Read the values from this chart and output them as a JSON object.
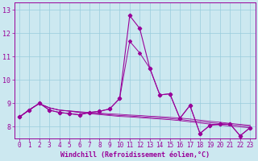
{
  "xlabel": "Windchill (Refroidissement éolien,°C)",
  "ylabel": "",
  "bg_color": "#cce8f0",
  "grid_color": "#99ccdd",
  "line_color": "#990099",
  "x": [
    0,
    1,
    2,
    3,
    4,
    5,
    6,
    7,
    8,
    9,
    10,
    11,
    12,
    13,
    14,
    15,
    16,
    17,
    18,
    19,
    20,
    21,
    22,
    23
  ],
  "y_main": [
    8.4,
    8.7,
    9.0,
    8.7,
    8.6,
    8.55,
    8.5,
    8.6,
    8.65,
    8.75,
    9.2,
    12.75,
    12.2,
    10.5,
    9.35,
    9.4,
    8.35,
    8.9,
    7.7,
    8.05,
    8.1,
    8.1,
    7.6,
    7.95
  ],
  "y_line2": [
    8.4,
    8.7,
    9.0,
    8.7,
    8.6,
    8.55,
    8.5,
    8.6,
    8.65,
    8.75,
    9.2,
    11.65,
    11.15,
    10.5,
    9.35,
    9.4,
    8.35,
    8.9,
    7.7,
    8.05,
    8.1,
    8.1,
    7.6,
    7.95
  ],
  "y_flat1": [
    8.4,
    8.72,
    8.98,
    8.8,
    8.7,
    8.67,
    8.63,
    8.6,
    8.57,
    8.54,
    8.52,
    8.49,
    8.47,
    8.44,
    8.42,
    8.39,
    8.36,
    8.32,
    8.27,
    8.22,
    8.18,
    8.13,
    8.09,
    8.05
  ],
  "y_flat2": [
    8.4,
    8.72,
    8.98,
    8.8,
    8.7,
    8.66,
    8.61,
    8.57,
    8.54,
    8.5,
    8.47,
    8.45,
    8.42,
    8.39,
    8.37,
    8.34,
    8.3,
    8.25,
    8.21,
    8.16,
    8.12,
    8.08,
    8.04,
    8.0
  ],
  "y_flat3": [
    8.4,
    8.72,
    8.98,
    8.8,
    8.7,
    8.65,
    8.6,
    8.55,
    8.51,
    8.47,
    8.43,
    8.41,
    8.38,
    8.35,
    8.32,
    8.29,
    8.25,
    8.2,
    8.15,
    8.1,
    8.06,
    8.02,
    7.98,
    7.94
  ],
  "ylim": [
    7.5,
    13.3
  ],
  "xlim": [
    -0.5,
    23.5
  ],
  "tick_fontsize": 5.5,
  "label_fontsize": 6.0,
  "marker_size": 2.0
}
